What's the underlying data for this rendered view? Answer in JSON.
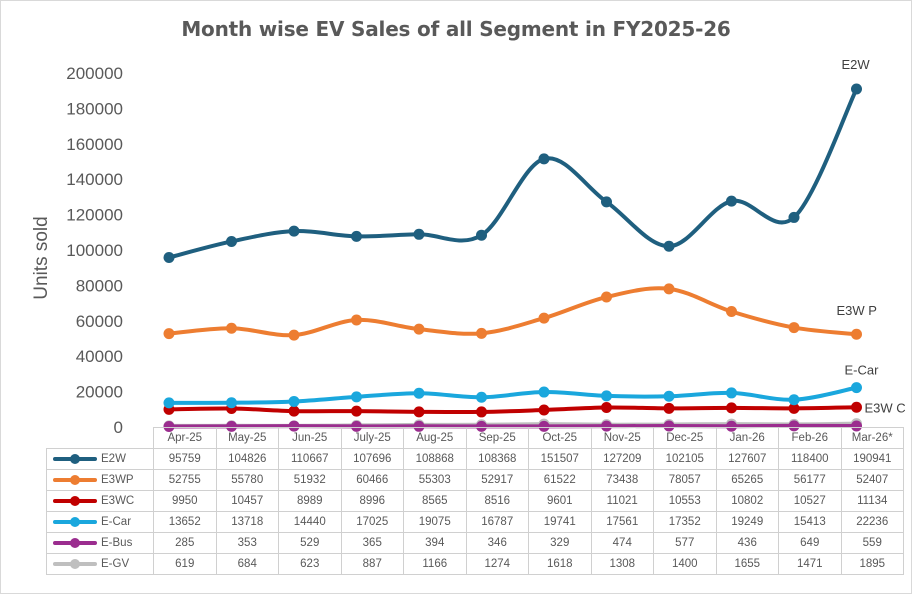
{
  "chart_data": {
    "type": "line",
    "title": "Month wise EV Sales of all Segment in FY2025-26",
    "xlabel": "",
    "ylabel": "Units sold",
    "ylim": [
      0,
      200000
    ],
    "yticks": [
      0,
      20000,
      40000,
      60000,
      80000,
      100000,
      120000,
      140000,
      160000,
      180000,
      200000
    ],
    "grid": false,
    "smooth": true,
    "legend": "data-table-below",
    "categories": [
      "Apr-25",
      "May-25",
      "Jun-25",
      "July-25",
      "Aug-25",
      "Sep-25",
      "Oct-25",
      "Nov-25",
      "Dec-25",
      "Jan-26",
      "Feb-26",
      "Mar-26*"
    ],
    "series": [
      {
        "name": "E2W",
        "end_label": "E2W",
        "color": "#1f5f7f",
        "values": [
          95759,
          104826,
          110667,
          107696,
          108868,
          108368,
          151507,
          127209,
          102105,
          127607,
          118400,
          190941
        ]
      },
      {
        "name": "E3WP",
        "end_label": "E3W P",
        "color": "#ed7d31",
        "values": [
          52755,
          55780,
          51932,
          60466,
          55303,
          52917,
          61522,
          73438,
          78057,
          65265,
          56177,
          52407
        ]
      },
      {
        "name": "E3WC",
        "end_label": "E3W C",
        "color": "#c00000",
        "values": [
          9950,
          10457,
          8989,
          8996,
          8565,
          8516,
          9601,
          11021,
          10553,
          10802,
          10527,
          11134
        ]
      },
      {
        "name": "E-Car",
        "end_label": "E-Car",
        "color": "#1aa7dd",
        "values": [
          13652,
          13718,
          14440,
          17025,
          19075,
          16787,
          19741,
          17561,
          17352,
          19249,
          15413,
          22236
        ]
      },
      {
        "name": "E-Bus",
        "end_label": "",
        "color": "#9b2d8f",
        "values": [
          285,
          353,
          529,
          365,
          394,
          346,
          329,
          474,
          577,
          436,
          649,
          559
        ]
      },
      {
        "name": "E-GV",
        "end_label": "",
        "color": "#bfbfbf",
        "values": [
          619,
          684,
          623,
          887,
          1166,
          1274,
          1618,
          1308,
          1400,
          1655,
          1471,
          1895
        ]
      }
    ]
  }
}
